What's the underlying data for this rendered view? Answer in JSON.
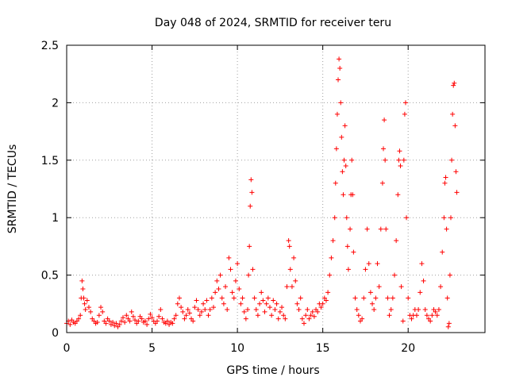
{
  "chart_data": {
    "type": "scatter",
    "title": "Day 048 of 2024, SRMTID for receiver teru",
    "xlabel": "GPS time / hours",
    "ylabel": "SRMTID / TECUs",
    "xlim": [
      0,
      24.5
    ],
    "ylim": [
      0,
      2.5
    ],
    "xticks": [
      0,
      5,
      10,
      15,
      20
    ],
    "xtick_labels": [
      "0",
      "5",
      "10",
      "15",
      "20"
    ],
    "yticks": [
      0,
      0.5,
      1,
      1.5,
      2,
      2.5
    ],
    "ytick_labels": [
      "0",
      "0.5",
      "1",
      "1.5",
      "2",
      "2.5"
    ],
    "grid": true,
    "legend": "none",
    "marker": "+",
    "series": [
      {
        "name": "teru",
        "color": "#ff0000",
        "points": [
          [
            0.0,
            0.08
          ],
          [
            0.1,
            0.1
          ],
          [
            0.2,
            0.07
          ],
          [
            0.3,
            0.11
          ],
          [
            0.4,
            0.09
          ],
          [
            0.5,
            0.08
          ],
          [
            0.6,
            0.1
          ],
          [
            0.7,
            0.12
          ],
          [
            0.8,
            0.15
          ],
          [
            0.85,
            0.3
          ],
          [
            0.9,
            0.45
          ],
          [
            0.95,
            0.38
          ],
          [
            1.0,
            0.3
          ],
          [
            1.05,
            0.25
          ],
          [
            1.1,
            0.2
          ],
          [
            1.2,
            0.28
          ],
          [
            1.3,
            0.22
          ],
          [
            1.4,
            0.18
          ],
          [
            1.5,
            0.12
          ],
          [
            1.6,
            0.1
          ],
          [
            1.7,
            0.08
          ],
          [
            1.8,
            0.09
          ],
          [
            1.9,
            0.15
          ],
          [
            2.0,
            0.22
          ],
          [
            2.1,
            0.18
          ],
          [
            2.2,
            0.1
          ],
          [
            2.3,
            0.08
          ],
          [
            2.4,
            0.12
          ],
          [
            2.5,
            0.1
          ],
          [
            2.6,
            0.07
          ],
          [
            2.7,
            0.09
          ],
          [
            2.8,
            0.06
          ],
          [
            2.9,
            0.08
          ],
          [
            3.0,
            0.05
          ],
          [
            3.1,
            0.07
          ],
          [
            3.2,
            0.1
          ],
          [
            3.3,
            0.13
          ],
          [
            3.4,
            0.09
          ],
          [
            3.5,
            0.15
          ],
          [
            3.6,
            0.12
          ],
          [
            3.7,
            0.1
          ],
          [
            3.8,
            0.18
          ],
          [
            3.9,
            0.14
          ],
          [
            4.0,
            0.11
          ],
          [
            4.1,
            0.08
          ],
          [
            4.2,
            0.1
          ],
          [
            4.3,
            0.14
          ],
          [
            4.4,
            0.12
          ],
          [
            4.5,
            0.09
          ],
          [
            4.6,
            0.1
          ],
          [
            4.7,
            0.07
          ],
          [
            4.8,
            0.12
          ],
          [
            4.9,
            0.16
          ],
          [
            5.0,
            0.13
          ],
          [
            5.1,
            0.1
          ],
          [
            5.2,
            0.08
          ],
          [
            5.3,
            0.1
          ],
          [
            5.4,
            0.14
          ],
          [
            5.5,
            0.2
          ],
          [
            5.6,
            0.12
          ],
          [
            5.7,
            0.09
          ],
          [
            5.8,
            0.08
          ],
          [
            5.9,
            0.1
          ],
          [
            6.0,
            0.07
          ],
          [
            6.1,
            0.09
          ],
          [
            6.2,
            0.08
          ],
          [
            6.3,
            0.12
          ],
          [
            6.4,
            0.15
          ],
          [
            6.5,
            0.25
          ],
          [
            6.6,
            0.3
          ],
          [
            6.7,
            0.22
          ],
          [
            6.8,
            0.18
          ],
          [
            6.9,
            0.12
          ],
          [
            7.0,
            0.15
          ],
          [
            7.1,
            0.2
          ],
          [
            7.2,
            0.17
          ],
          [
            7.3,
            0.12
          ],
          [
            7.4,
            0.1
          ],
          [
            7.5,
            0.22
          ],
          [
            7.6,
            0.28
          ],
          [
            7.7,
            0.2
          ],
          [
            7.8,
            0.15
          ],
          [
            7.9,
            0.18
          ],
          [
            8.0,
            0.25
          ],
          [
            8.1,
            0.2
          ],
          [
            8.2,
            0.28
          ],
          [
            8.3,
            0.15
          ],
          [
            8.4,
            0.2
          ],
          [
            8.5,
            0.3
          ],
          [
            8.6,
            0.22
          ],
          [
            8.7,
            0.35
          ],
          [
            8.8,
            0.45
          ],
          [
            8.9,
            0.38
          ],
          [
            9.0,
            0.5
          ],
          [
            9.1,
            0.3
          ],
          [
            9.2,
            0.25
          ],
          [
            9.3,
            0.4
          ],
          [
            9.4,
            0.2
          ],
          [
            9.5,
            0.65
          ],
          [
            9.6,
            0.55
          ],
          [
            9.7,
            0.35
          ],
          [
            9.8,
            0.3
          ],
          [
            9.9,
            0.45
          ],
          [
            10.0,
            0.6
          ],
          [
            10.1,
            0.38
          ],
          [
            10.2,
            0.25
          ],
          [
            10.3,
            0.3
          ],
          [
            10.4,
            0.18
          ],
          [
            10.5,
            0.12
          ],
          [
            10.6,
            0.2
          ],
          [
            10.65,
            0.5
          ],
          [
            10.7,
            0.75
          ],
          [
            10.75,
            1.1
          ],
          [
            10.8,
            1.33
          ],
          [
            10.85,
            1.22
          ],
          [
            10.9,
            0.55
          ],
          [
            11.0,
            0.3
          ],
          [
            11.1,
            0.2
          ],
          [
            11.2,
            0.15
          ],
          [
            11.3,
            0.25
          ],
          [
            11.4,
            0.35
          ],
          [
            11.5,
            0.28
          ],
          [
            11.6,
            0.18
          ],
          [
            11.7,
            0.25
          ],
          [
            11.8,
            0.3
          ],
          [
            11.9,
            0.22
          ],
          [
            12.0,
            0.15
          ],
          [
            12.1,
            0.28
          ],
          [
            12.2,
            0.2
          ],
          [
            12.3,
            0.25
          ],
          [
            12.4,
            0.12
          ],
          [
            12.5,
            0.18
          ],
          [
            12.6,
            0.22
          ],
          [
            12.7,
            0.15
          ],
          [
            12.8,
            0.12
          ],
          [
            12.9,
            0.4
          ],
          [
            13.0,
            0.8
          ],
          [
            13.05,
            0.75
          ],
          [
            13.1,
            0.55
          ],
          [
            13.2,
            0.4
          ],
          [
            13.3,
            0.65
          ],
          [
            13.4,
            0.45
          ],
          [
            13.5,
            0.25
          ],
          [
            13.6,
            0.2
          ],
          [
            13.7,
            0.3
          ],
          [
            13.8,
            0.12
          ],
          [
            13.9,
            0.08
          ],
          [
            14.0,
            0.15
          ],
          [
            14.1,
            0.2
          ],
          [
            14.2,
            0.12
          ],
          [
            14.3,
            0.15
          ],
          [
            14.4,
            0.18
          ],
          [
            14.5,
            0.14
          ],
          [
            14.6,
            0.2
          ],
          [
            14.7,
            0.18
          ],
          [
            14.8,
            0.25
          ],
          [
            14.9,
            0.22
          ],
          [
            15.0,
            0.25
          ],
          [
            15.1,
            0.3
          ],
          [
            15.2,
            0.28
          ],
          [
            15.3,
            0.35
          ],
          [
            15.4,
            0.5
          ],
          [
            15.5,
            0.65
          ],
          [
            15.6,
            0.8
          ],
          [
            15.7,
            1.0
          ],
          [
            15.75,
            1.3
          ],
          [
            15.8,
            1.6
          ],
          [
            15.85,
            1.9
          ],
          [
            15.9,
            2.2
          ],
          [
            15.95,
            2.38
          ],
          [
            16.0,
            2.3
          ],
          [
            16.05,
            2.0
          ],
          [
            16.1,
            1.7
          ],
          [
            16.15,
            1.4
          ],
          [
            16.2,
            1.2
          ],
          [
            16.25,
            1.5
          ],
          [
            16.3,
            1.8
          ],
          [
            16.35,
            1.45
          ],
          [
            16.4,
            1.0
          ],
          [
            16.45,
            0.75
          ],
          [
            16.5,
            0.55
          ],
          [
            16.6,
            0.9
          ],
          [
            16.65,
            1.2
          ],
          [
            16.7,
            1.5
          ],
          [
            16.75,
            1.2
          ],
          [
            16.8,
            0.7
          ],
          [
            16.9,
            0.3
          ],
          [
            17.0,
            0.2
          ],
          [
            17.1,
            0.15
          ],
          [
            17.2,
            0.1
          ],
          [
            17.3,
            0.12
          ],
          [
            17.4,
            0.3
          ],
          [
            17.5,
            0.55
          ],
          [
            17.6,
            0.9
          ],
          [
            17.7,
            0.6
          ],
          [
            17.8,
            0.35
          ],
          [
            17.9,
            0.25
          ],
          [
            18.0,
            0.2
          ],
          [
            18.1,
            0.3
          ],
          [
            18.2,
            0.6
          ],
          [
            18.3,
            0.4
          ],
          [
            18.4,
            0.9
          ],
          [
            18.5,
            1.3
          ],
          [
            18.55,
            1.6
          ],
          [
            18.6,
            1.85
          ],
          [
            18.65,
            1.5
          ],
          [
            18.7,
            0.9
          ],
          [
            18.8,
            0.3
          ],
          [
            18.9,
            0.15
          ],
          [
            19.0,
            0.2
          ],
          [
            19.1,
            0.3
          ],
          [
            19.2,
            0.5
          ],
          [
            19.3,
            0.8
          ],
          [
            19.4,
            1.2
          ],
          [
            19.45,
            1.5
          ],
          [
            19.5,
            1.58
          ],
          [
            19.55,
            1.45
          ],
          [
            19.6,
            0.4
          ],
          [
            19.7,
            0.1
          ],
          [
            19.75,
            1.5
          ],
          [
            19.8,
            1.9
          ],
          [
            19.85,
            2.0
          ],
          [
            19.9,
            1.0
          ],
          [
            20.0,
            0.3
          ],
          [
            20.1,
            0.15
          ],
          [
            20.2,
            0.12
          ],
          [
            20.3,
            0.15
          ],
          [
            20.4,
            0.2
          ],
          [
            20.5,
            0.15
          ],
          [
            20.6,
            0.2
          ],
          [
            20.7,
            0.35
          ],
          [
            20.8,
            0.6
          ],
          [
            20.9,
            0.45
          ],
          [
            21.0,
            0.2
          ],
          [
            21.1,
            0.15
          ],
          [
            21.2,
            0.12
          ],
          [
            21.3,
            0.1
          ],
          [
            21.4,
            0.15
          ],
          [
            21.5,
            0.2
          ],
          [
            21.6,
            0.18
          ],
          [
            21.7,
            0.15
          ],
          [
            21.8,
            0.2
          ],
          [
            21.9,
            0.4
          ],
          [
            22.0,
            0.7
          ],
          [
            22.1,
            1.0
          ],
          [
            22.15,
            1.3
          ],
          [
            22.2,
            1.35
          ],
          [
            22.25,
            0.9
          ],
          [
            22.3,
            0.3
          ],
          [
            22.35,
            0.05
          ],
          [
            22.4,
            0.08
          ],
          [
            22.45,
            0.5
          ],
          [
            22.5,
            1.0
          ],
          [
            22.55,
            1.5
          ],
          [
            22.6,
            1.9
          ],
          [
            22.65,
            2.15
          ],
          [
            22.7,
            2.17
          ],
          [
            22.75,
            1.8
          ],
          [
            22.8,
            1.4
          ],
          [
            22.85,
            1.22
          ]
        ]
      }
    ]
  }
}
